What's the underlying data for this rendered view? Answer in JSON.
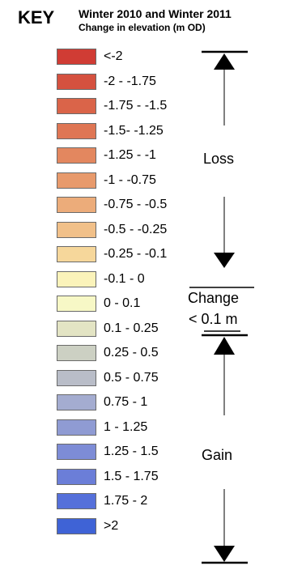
{
  "key": {
    "title": "KEY",
    "heading_line1": "Winter 2010 and Winter 2011",
    "heading_line2": "Change in elevation (m OD)"
  },
  "legend": {
    "items": [
      {
        "label": "<-2",
        "color": "#d03c34"
      },
      {
        "label": "-2 - -1.75",
        "color": "#d5513f"
      },
      {
        "label": "-1.75 - -1.5",
        "color": "#da6449"
      },
      {
        "label": "-1.5- -1.25",
        "color": "#df7654"
      },
      {
        "label": "-1.25 - -1",
        "color": "#e3875f"
      },
      {
        "label": "-1 - -0.75",
        "color": "#e89a6c"
      },
      {
        "label": "-0.75 - -0.5",
        "color": "#ecac7a"
      },
      {
        "label": "-0.5 - -0.25",
        "color": "#f1c089"
      },
      {
        "label": "-0.25 - -0.1",
        "color": "#f6d79b"
      },
      {
        "label": "-0.1 - 0",
        "color": "#fbf3ba"
      },
      {
        "label": "0 - 0.1",
        "color": "#f7f8c6"
      },
      {
        "label": "0.1 - 0.25",
        "color": "#e3e4c4"
      },
      {
        "label": "0.25 - 0.5",
        "color": "#ccd0c3"
      },
      {
        "label": "0.5 - 0.75",
        "color": "#b9bdc8"
      },
      {
        "label": "0.75 - 1",
        "color": "#a4acd0"
      },
      {
        "label": "1 - 1.25",
        "color": "#8f9bd3"
      },
      {
        "label": "1.25 - 1.5",
        "color": "#7d8cd6"
      },
      {
        "label": "1.5 - 1.75",
        "color": "#6b7ed8"
      },
      {
        "label": "1.75 - 2",
        "color": "#5570da"
      },
      {
        "label": ">2",
        "color": "#3f63d6"
      }
    ]
  },
  "side_labels": {
    "loss": "Loss",
    "change_line1": "Change",
    "change_line2": "< 0.1 m",
    "gain": "Gain"
  }
}
